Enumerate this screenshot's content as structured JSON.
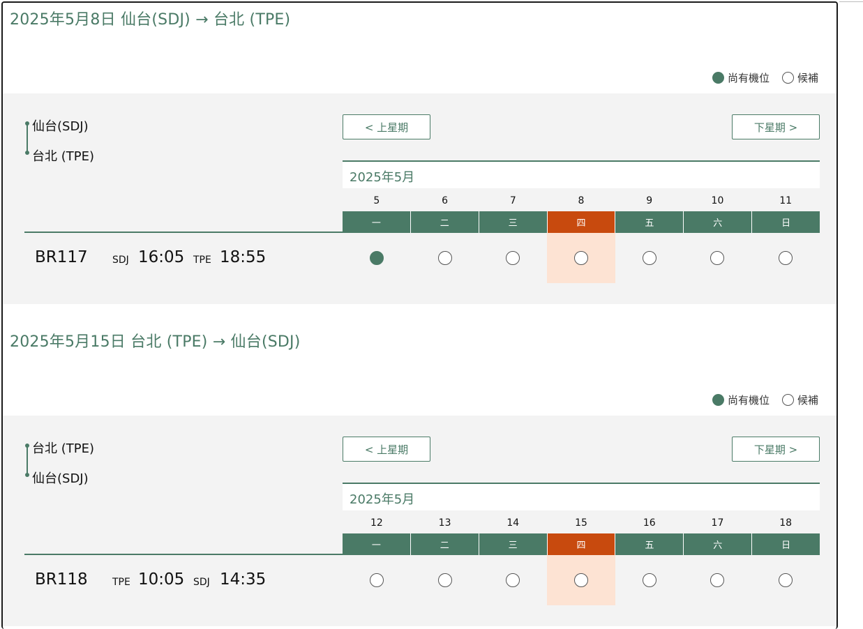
{
  "colors": {
    "accent": "#4a7a66",
    "selected": "#c84a0e",
    "selected_bg": "#fde3d3"
  },
  "legend": {
    "available": "尚有機位",
    "waitlist": "候補"
  },
  "sections": [
    {
      "title": "2025年5月8日 仙台(SDJ) → 台北 (TPE)",
      "origin": "仙台(SDJ)",
      "destination": "台北 (TPE)",
      "prev_week": "< 上星期",
      "next_week": "下星期 >",
      "month": "2025年5月",
      "dates": [
        "5",
        "6",
        "7",
        "8",
        "9",
        "10",
        "11"
      ],
      "weekdays": [
        "一",
        "二",
        "三",
        "四",
        "五",
        "六",
        "日"
      ],
      "selected_index": 3,
      "flight": {
        "number": "BR117",
        "dep_airport": "SDJ",
        "dep_time": "16:05",
        "arr_airport": "TPE",
        "arr_time": "18:55",
        "availability": [
          "available",
          "waitlist",
          "waitlist",
          "waitlist",
          "waitlist",
          "waitlist",
          "waitlist"
        ]
      }
    },
    {
      "title": "2025年5月15日 台北 (TPE) → 仙台(SDJ)",
      "origin": "台北 (TPE)",
      "destination": "仙台(SDJ)",
      "prev_week": "< 上星期",
      "next_week": "下星期 >",
      "month": "2025年5月",
      "dates": [
        "12",
        "13",
        "14",
        "15",
        "16",
        "17",
        "18"
      ],
      "weekdays": [
        "一",
        "二",
        "三",
        "四",
        "五",
        "六",
        "日"
      ],
      "selected_index": 3,
      "flight": {
        "number": "BR118",
        "dep_airport": "TPE",
        "dep_time": "10:05",
        "arr_airport": "SDJ",
        "arr_time": "14:35",
        "availability": [
          "waitlist",
          "waitlist",
          "waitlist",
          "waitlist",
          "waitlist",
          "waitlist",
          "waitlist"
        ]
      }
    }
  ]
}
